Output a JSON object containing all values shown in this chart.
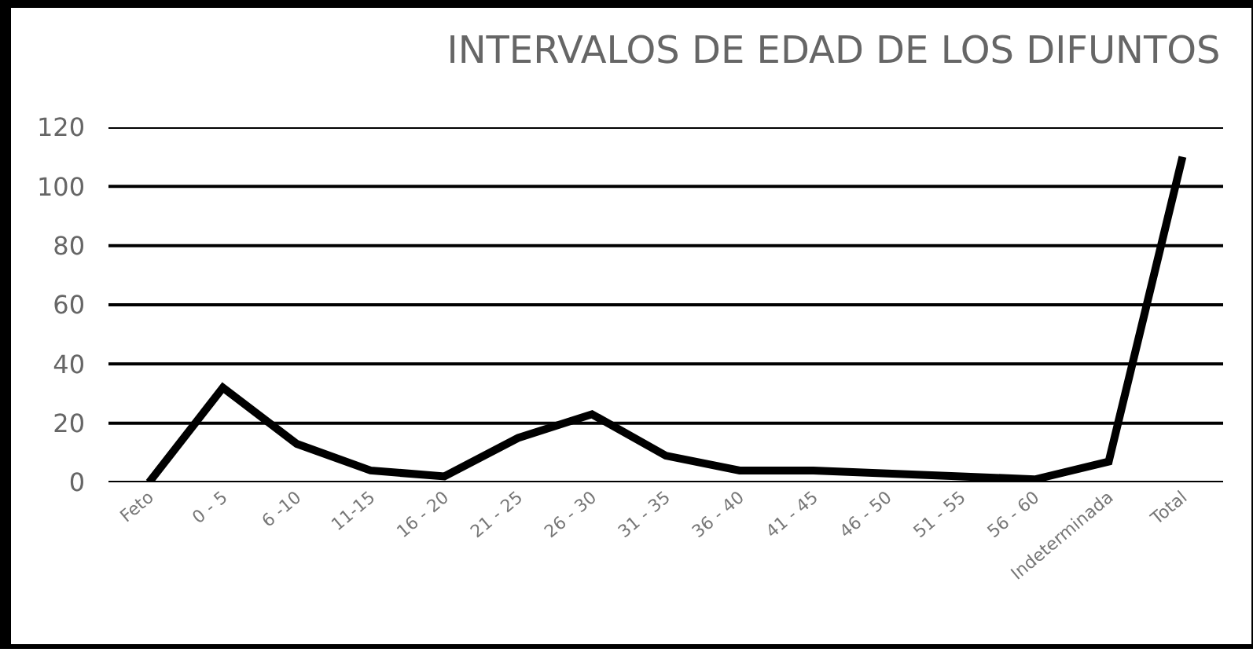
{
  "chart_data": {
    "type": "line",
    "title": "INTERVALOS DE EDAD DE LOS DIFUNTOS",
    "categories": [
      "Feto",
      "0 - 5",
      "6 -10",
      "11-15",
      "16 - 20",
      "21 - 25",
      "26 - 30",
      "31 - 35",
      "36 - 40",
      "41 - 45",
      "46 - 50",
      "51 - 55",
      "56 - 60",
      "Indeterminada",
      "Total"
    ],
    "series": [
      {
        "color": "#000000",
        "values": [
          0,
          32,
          13,
          4,
          2,
          15,
          23,
          9,
          4,
          4,
          3,
          2,
          1,
          7,
          110
        ]
      }
    ],
    "ylim": [
      0,
      120
    ],
    "yticks": [
      0,
      20,
      40,
      60,
      80,
      100,
      120
    ],
    "grid": "y",
    "marker": "none",
    "line_style": "solid"
  }
}
